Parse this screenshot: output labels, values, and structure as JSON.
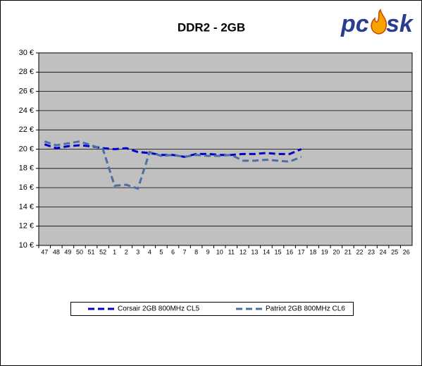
{
  "logo": {
    "left": "pc",
    "right": "sk"
  },
  "chart_data": {
    "type": "line",
    "title": "DDR2 - 2GB",
    "categories": [
      "47",
      "48",
      "49",
      "50",
      "51",
      "52",
      "1",
      "2",
      "3",
      "4",
      "5",
      "6",
      "7",
      "8",
      "9",
      "10",
      "11",
      "12",
      "13",
      "14",
      "15",
      "16",
      "17",
      "18",
      "19",
      "20",
      "21",
      "22",
      "23",
      "24",
      "25",
      "26"
    ],
    "series": [
      {
        "name": "Corsair 2GB 800MHz CL5",
        "color": "#0000cc",
        "values": [
          20.5,
          20.1,
          20.3,
          20.4,
          20.3,
          20.1,
          20.0,
          20.1,
          19.7,
          19.6,
          19.4,
          19.4,
          19.2,
          19.5,
          19.5,
          19.4,
          19.4,
          19.5,
          19.5,
          19.6,
          19.5,
          19.5,
          20.0,
          null,
          null,
          null,
          null,
          null,
          null,
          null,
          null,
          null
        ]
      },
      {
        "name": "Patriot 2GB 800MHz CL6",
        "color": "#4a6fa5",
        "values": [
          20.8,
          20.4,
          20.6,
          20.8,
          20.4,
          20.0,
          16.2,
          16.3,
          15.9,
          19.7,
          19.3,
          19.4,
          19.2,
          19.4,
          19.3,
          19.3,
          19.4,
          18.8,
          18.8,
          18.9,
          18.8,
          18.7,
          19.2,
          null,
          null,
          null,
          null,
          null,
          null,
          null,
          null,
          null
        ]
      }
    ],
    "ylim": [
      10,
      30
    ],
    "yticks": [
      {
        "value": 10,
        "label": "10 €"
      },
      {
        "value": 12,
        "label": "12 €"
      },
      {
        "value": 14,
        "label": "14 €"
      },
      {
        "value": 16,
        "label": "16 €"
      },
      {
        "value": 18,
        "label": "18 €"
      },
      {
        "value": 20,
        "label": "20 €"
      },
      {
        "value": 22,
        "label": "22 €"
      },
      {
        "value": 24,
        "label": "24 €"
      },
      {
        "value": 26,
        "label": "26 €"
      },
      {
        "value": 28,
        "label": "28 €"
      },
      {
        "value": 30,
        "label": "30 €"
      }
    ],
    "grid": true
  }
}
